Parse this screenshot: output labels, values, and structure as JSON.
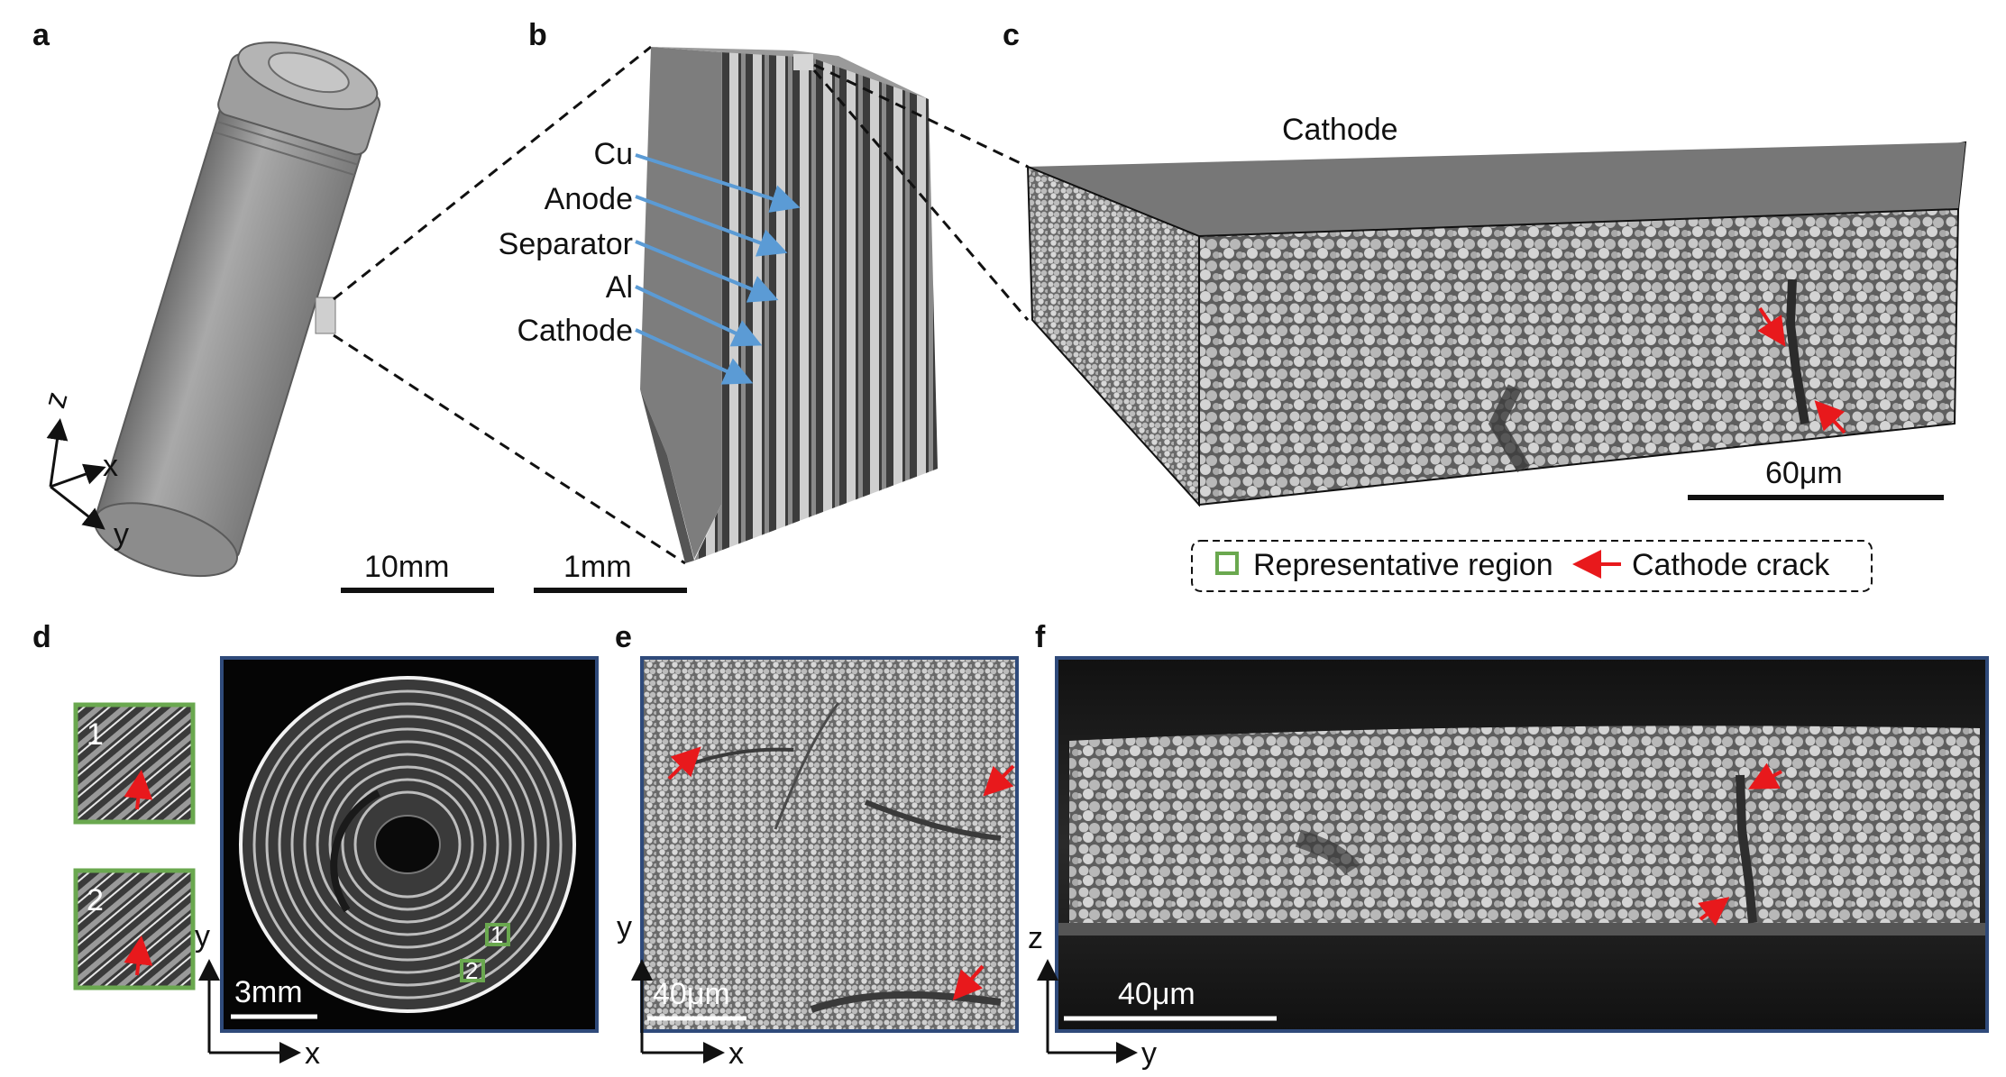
{
  "panels": {
    "a": {
      "label": "a",
      "scale_bar": "10mm",
      "axes": {
        "z": "z",
        "x": "x",
        "y": "y"
      }
    },
    "b": {
      "label": "b",
      "scale_bar": "1mm",
      "layers": [
        "Cu",
        "Anode",
        "Separator",
        "Al",
        "Cathode"
      ]
    },
    "c": {
      "label": "c",
      "title": "Cathode",
      "scale_bar": "60μm",
      "legend": {
        "representative": "Representative region",
        "crack": "Cathode crack"
      }
    },
    "d": {
      "label": "d",
      "scale_bar": "3mm",
      "insets": [
        "1",
        "2"
      ],
      "axes": {
        "y": "y",
        "x": "x"
      }
    },
    "e": {
      "label": "e",
      "scale_bar": "40μm",
      "axes": {
        "y": "y",
        "x": "x"
      }
    },
    "f": {
      "label": "f",
      "scale_bar": "40μm",
      "axes": {
        "z": "z",
        "y": "y"
      }
    }
  },
  "colors": {
    "crack_arrow": "#e8191c",
    "layer_arrow": "#5b9bd5",
    "inset_border": "#6aa84f",
    "frame_border": "#2f4a7a"
  }
}
